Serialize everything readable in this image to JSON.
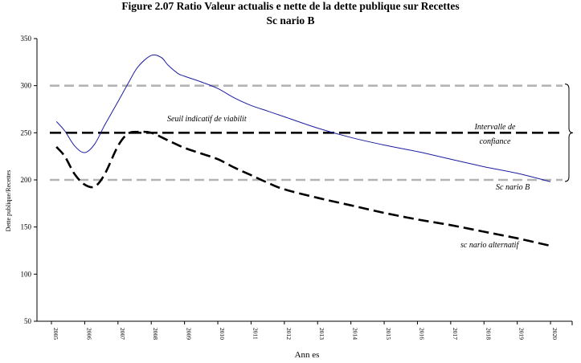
{
  "chart_data": {
    "type": "line",
    "title": "Figure 2.07 Ratio Valeur actualis  e nette de la dette publique sur Recettes",
    "subtitle": "Sc  nario B",
    "xlabel": "Ann  es",
    "ylabel": "Dette publique/Recettes",
    "ylim": [
      50,
      350
    ],
    "yticks": [
      50,
      100,
      150,
      200,
      250,
      300,
      350
    ],
    "categories": [
      "2005",
      "2006",
      "2007",
      "2008",
      "2009",
      "2010",
      "2011",
      "2012",
      "2013",
      "2014",
      "2015",
      "2016",
      "2017",
      "2018",
      "2019",
      "2020"
    ],
    "x": [
      2005.15,
      2005.4,
      2005.7,
      2006.0,
      2006.3,
      2006.6,
      2007.0,
      2007.3,
      2007.6,
      2008.0,
      2008.3,
      2008.5,
      2008.8,
      2009.0,
      2009.5,
      2010.0,
      2010.5,
      2011.0,
      2011.5,
      2012.0,
      2013.0,
      2014.0,
      2015.0,
      2016.0,
      2017.0,
      2018.0,
      2019.0,
      2020.0
    ],
    "series": [
      {
        "name": "Sc  nario B",
        "style": "solid",
        "color": "#1c1ca0",
        "x": [
          2005.15,
          2005.4,
          2005.7,
          2006.0,
          2006.3,
          2006.6,
          2007.0,
          2007.3,
          2007.6,
          2008.0,
          2008.3,
          2008.5,
          2008.8,
          2009.0,
          2009.5,
          2010.0,
          2010.5,
          2011.0,
          2011.5,
          2012.0,
          2013.0,
          2014.0,
          2015.0,
          2016.0,
          2017.0,
          2018.0,
          2019.0,
          2020.0
        ],
        "values": [
          262,
          252,
          236,
          229,
          238,
          258,
          283,
          302,
          320,
          332,
          330,
          322,
          313,
          310,
          304,
          297,
          287,
          279,
          273,
          267,
          255,
          245,
          237,
          230,
          222,
          214,
          207,
          198
        ]
      },
      {
        "name": "sc  nario alternatif",
        "style": "dashed",
        "color": "#000000",
        "x": [
          2005.15,
          2005.4,
          2005.7,
          2006.0,
          2006.3,
          2006.6,
          2007.0,
          2007.3,
          2007.6,
          2008.0,
          2008.5,
          2009.0,
          2009.5,
          2010.0,
          2010.5,
          2011.0,
          2011.5,
          2012.0,
          2013.0,
          2014.0,
          2015.0,
          2016.0,
          2017.0,
          2018.0,
          2019.0,
          2020.0
        ],
        "values": [
          235,
          225,
          206,
          195,
          193,
          206,
          236,
          249,
          251,
          250,
          242,
          234,
          228,
          222,
          213,
          205,
          197,
          190,
          181,
          173,
          165,
          158,
          152,
          145,
          138,
          130
        ]
      }
    ],
    "reference_lines": [
      {
        "name": "Seuil indicatif de  viabilit",
        "value": 250,
        "style": "dashed",
        "color": "#000000"
      },
      {
        "name": "upper-bound",
        "value": 300,
        "style": "dashed",
        "color": "#b4b4b4"
      },
      {
        "name": "lower-bound",
        "value": 200,
        "style": "dashed",
        "color": "#b4b4b4"
      }
    ],
    "annotations": {
      "seuil": "Seuil indicatif de  viabilit",
      "intervalle_line1": "Intervalle de",
      "intervalle_line2": "confiance",
      "scenario_b": "Sc  nario  B",
      "scenario_alt": "sc  nario alternatif"
    }
  }
}
